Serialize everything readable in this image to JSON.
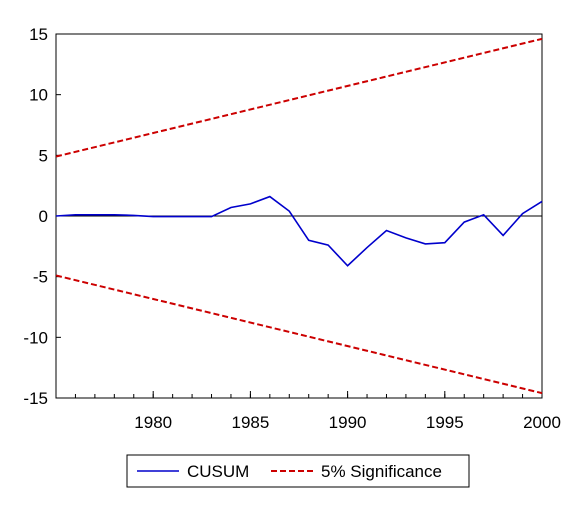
{
  "chart_data": {
    "type": "line",
    "title": "",
    "xlabel": "",
    "ylabel": "",
    "xlim": [
      1975,
      2000
    ],
    "ylim": [
      -15,
      15
    ],
    "x_ticks": [
      1980,
      1985,
      1990,
      1995,
      2000
    ],
    "y_ticks": [
      -15,
      -10,
      -5,
      0,
      5,
      10,
      15
    ],
    "zero_line": true,
    "grid": false,
    "legend_position": "bottom",
    "series": [
      {
        "name": "CUSUM",
        "color": "#0000cc",
        "style": "solid",
        "x": [
          1975,
          1976,
          1977,
          1978,
          1979,
          1980,
          1981,
          1982,
          1983,
          1984,
          1985,
          1986,
          1987,
          1988,
          1989,
          1990,
          1991,
          1992,
          1993,
          1994,
          1995,
          1996,
          1997,
          1998,
          1999,
          2000
        ],
        "y": [
          0.0,
          0.1,
          0.1,
          0.1,
          0.05,
          -0.05,
          -0.05,
          -0.05,
          -0.05,
          0.7,
          1.0,
          1.6,
          0.4,
          -2.0,
          -2.4,
          -4.1,
          -2.6,
          -1.2,
          -1.8,
          -2.3,
          -2.2,
          -0.5,
          0.1,
          -1.6,
          0.2,
          1.2
        ]
      },
      {
        "name": "5% Significance",
        "color": "#cc0000",
        "style": "dashed",
        "x": [
          1975,
          2000
        ],
        "y": [
          4.9,
          14.6
        ]
      },
      {
        "name": "",
        "color": "#cc0000",
        "style": "dashed",
        "x": [
          1975,
          2000
        ],
        "y": [
          -4.9,
          -14.6
        ]
      }
    ]
  }
}
